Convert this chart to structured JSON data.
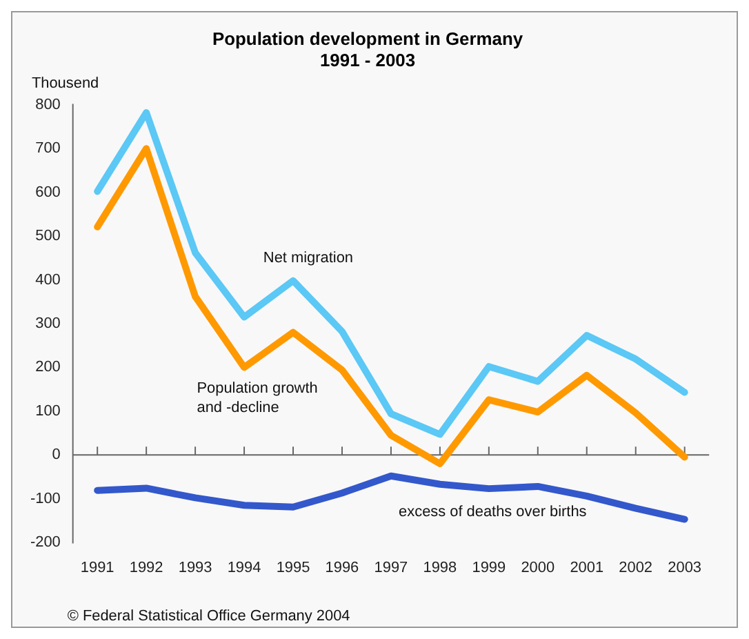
{
  "chart_data": {
    "type": "line",
    "title": "Population development in Germany\n1991 - 2003",
    "ylabel": "Thousend",
    "categories": [
      "1991",
      "1992",
      "1993",
      "1994",
      "1995",
      "1996",
      "1997",
      "1998",
      "1999",
      "2000",
      "2001",
      "2002",
      "2003"
    ],
    "series": [
      {
        "name": "Net migration",
        "color": "#5bc8f5",
        "values": [
          602,
          782,
          462,
          315,
          398,
          282,
          94,
          47,
          202,
          168,
          273,
          219,
          143
        ]
      },
      {
        "name": "Population growth\nand -decline",
        "color": "#ff9900",
        "values": [
          521,
          700,
          362,
          200,
          280,
          194,
          45,
          -20,
          126,
          98,
          182,
          96,
          -5
        ]
      },
      {
        "name": "excess of deaths over births",
        "color": "#3358cc",
        "values": [
          -81,
          -76,
          -98,
          -115,
          -119,
          -87,
          -48,
          -67,
          -77,
          -72,
          -94,
          -122,
          -147
        ]
      }
    ],
    "ref_lines": [
      {
        "axis": "y",
        "value": 0,
        "color": "#666666"
      }
    ],
    "annotations": [
      "© Federal Statistical Office Germany 2004"
    ],
    "ylim": [
      -200,
      800
    ],
    "yticks": [
      -200,
      -100,
      0,
      100,
      200,
      300,
      400,
      500,
      600,
      700,
      800
    ],
    "grid": false,
    "legend": false,
    "marker": "none",
    "line_style": "solid"
  }
}
